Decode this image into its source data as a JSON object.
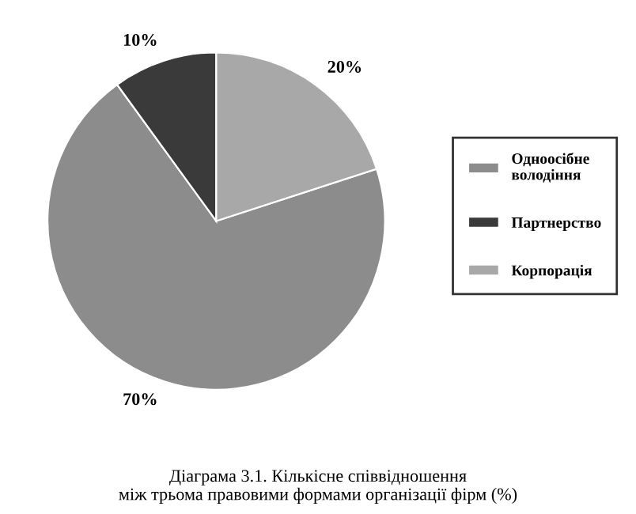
{
  "chart_data": {
    "type": "pie",
    "title": "Діаграма 3.1. Кількісне співвідношення\nміж трьома правовими формами організації фірм (%)",
    "categories": [
      "Одноосібне\nволодіння",
      "Партнерство",
      "Корпорація"
    ],
    "values": [
      70,
      10,
      20
    ],
    "colors": [
      "#8c8c8c",
      "#3a3a3a",
      "#a8a8a8"
    ],
    "value_labels": [
      "70%",
      "10%",
      "20%"
    ],
    "legend": "right"
  }
}
